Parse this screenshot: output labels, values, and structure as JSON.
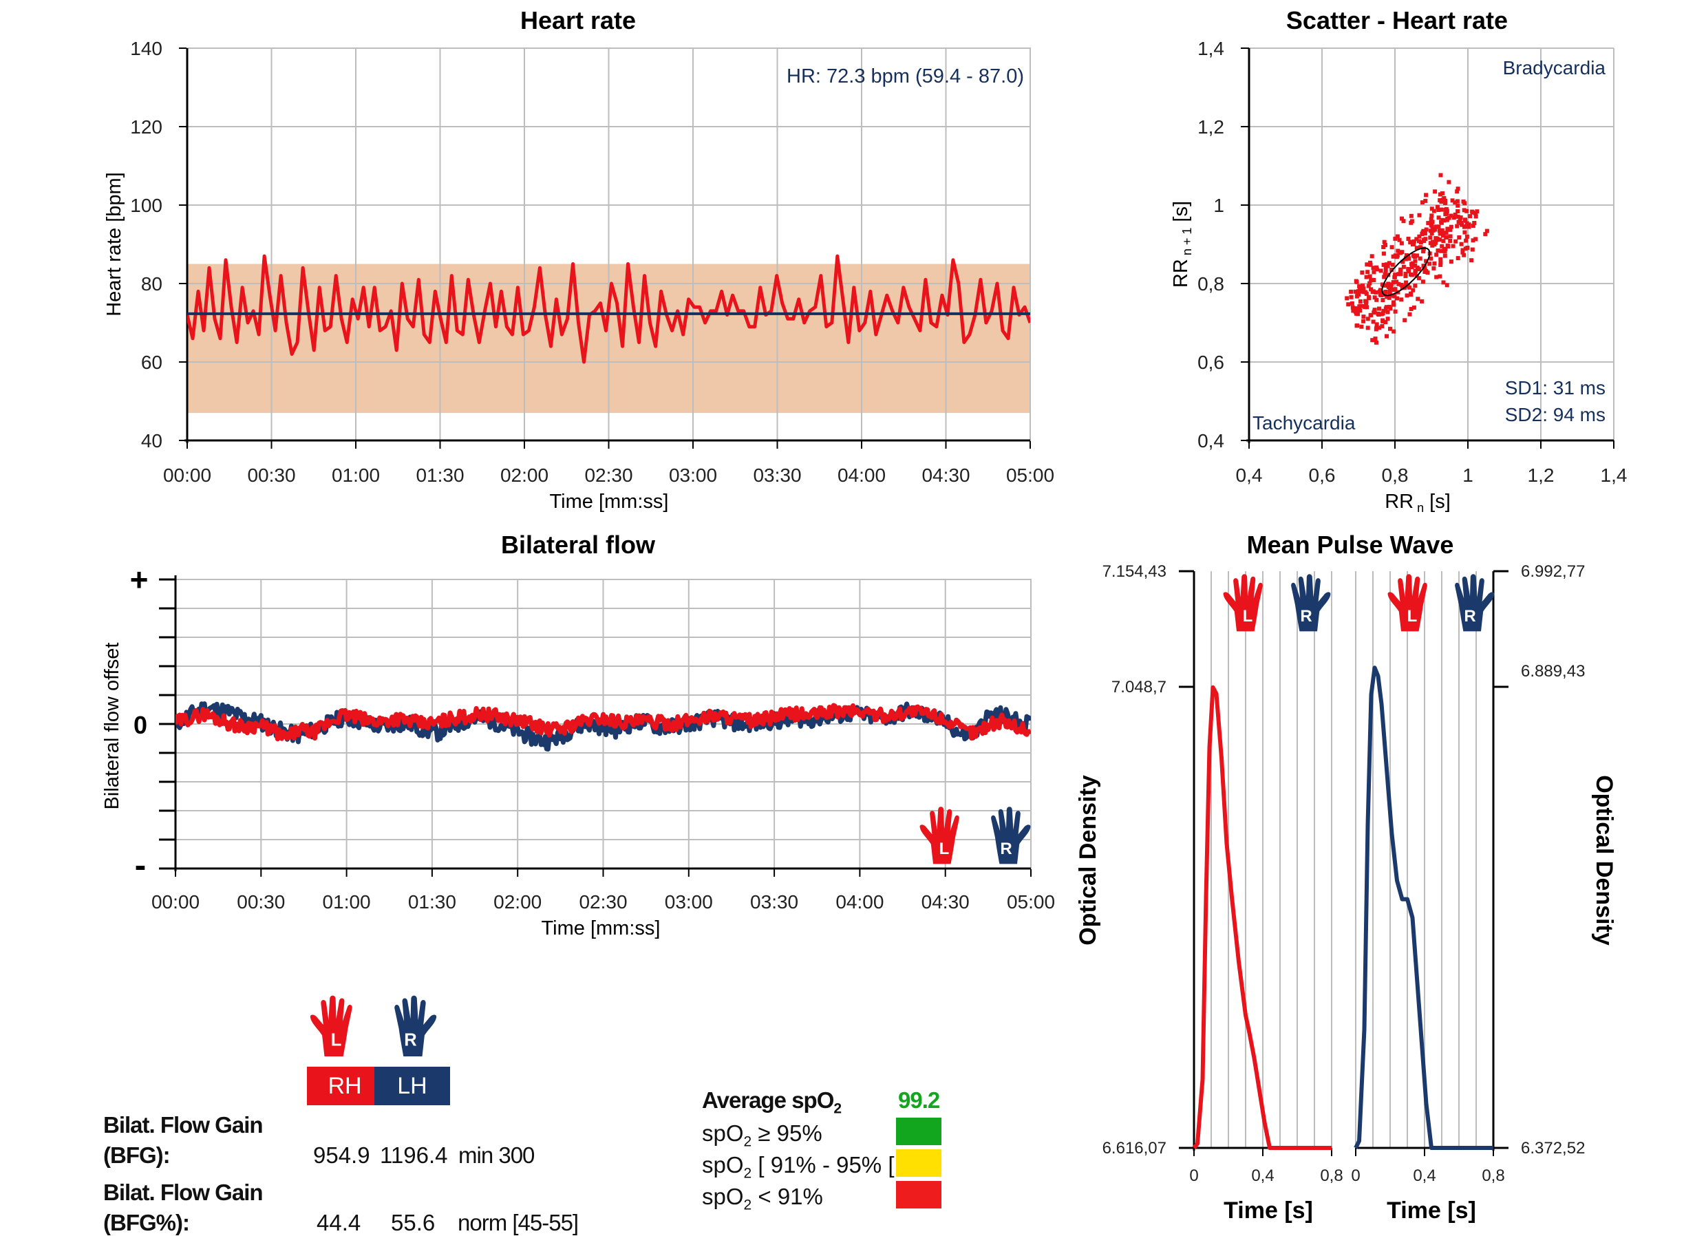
{
  "colors": {
    "right_hand": "#e8131b",
    "left_hand": "#1b3a6b",
    "band": "#efc7a9",
    "mean_line": "#15305c",
    "good": "#12a51e",
    "warn": "#ffe000",
    "bad": "#ee1c1c"
  },
  "hands": {
    "left_letter": "L",
    "right_letter": "R"
  },
  "hr_chart": {
    "title": "Heart rate",
    "ylabel": "Heart rate [bpm]",
    "xlabel": "Time [mm:ss]",
    "yticks": [
      "140",
      "120",
      "100",
      "80",
      "60",
      "40"
    ],
    "xticks": [
      "00:00",
      "00:30",
      "01:00",
      "01:30",
      "02:00",
      "02:30",
      "03:00",
      "03:30",
      "04:00",
      "04:30",
      "05:00"
    ],
    "annotation": "HR: 72.3 bpm (59.4 - 87.0)"
  },
  "scatter_chart": {
    "title": "Scatter - Heart rate",
    "xlabel": "RR n [s]",
    "ylabel": "RR n + 1 [s]",
    "yticks": [
      "1,4",
      "1,2",
      "1",
      "0,8",
      "0,6",
      "0,4"
    ],
    "xticks": [
      "0,4",
      "0,6",
      "0,8",
      "1",
      "1,2",
      "1,4"
    ],
    "label_top": "Bradycardia",
    "label_bottom": "Tachycardia",
    "sd1": "SD1: 31 ms",
    "sd2": "SD2: 94 ms"
  },
  "flow_chart": {
    "title": "Bilateral flow",
    "ylabel": "Bilateral flow offset",
    "xlabel": "Time [mm:ss]",
    "plus": "+",
    "zero": "0",
    "minus": "-",
    "xticks": [
      "00:00",
      "00:30",
      "01:00",
      "01:30",
      "02:00",
      "02:30",
      "03:00",
      "03:30",
      "04:00",
      "04:30",
      "05:00"
    ]
  },
  "pulse_chart": {
    "title": "Mean Pulse Wave",
    "left_ticks": [
      "7.154,43",
      "7.048,7",
      "6.616,07"
    ],
    "right_ticks": [
      "6.992,77",
      "6.889,43",
      "6.372,52"
    ],
    "ylabel": "Optical Density",
    "xticks": [
      "0",
      "0,4",
      "0,8"
    ],
    "xlabel": "Time [s]"
  },
  "legend": {
    "rh": "RH",
    "lh": "LH"
  },
  "stats": {
    "bfg_label_1": "Bilat. Flow Gain",
    "bfg_label_2": "(BFG):",
    "bfg_rh": "954.9",
    "bfg_lh": "1196.4",
    "bfg_norm": "min 300",
    "bfgp_label_1": "Bilat. Flow Gain",
    "bfgp_label_2": "(BFG%):",
    "bfgp_rh": "44.4",
    "bfgp_lh": "55.6",
    "bfgp_norm": "norm [45-55]"
  },
  "spo2": {
    "avg_label": "Average spO",
    "avg_sub": "2",
    "avg_value": "99.2",
    "row1_pre": "spO",
    "row1_sub": "2",
    "row1_post": " ≥ 95%",
    "row2_pre": "spO",
    "row2_sub": "2",
    "row2_post": " [ 91% - 95% [",
    "row3_pre": "spO",
    "row3_sub": "2",
    "row3_post": " < 91%"
  },
  "chart_data": [
    {
      "type": "line",
      "title": "Heart rate",
      "xlabel": "Time [mm:ss]",
      "ylabel": "Heart rate [bpm]",
      "xlim": [
        0,
        300
      ],
      "ylim": [
        40,
        140
      ],
      "band": [
        47,
        85
      ],
      "mean": 72.3,
      "series": [
        {
          "values": [
            72,
            66,
            78,
            68,
            84,
            71,
            66,
            86,
            74,
            65,
            79,
            70,
            73,
            67,
            87,
            77,
            68,
            82,
            70,
            62,
            65,
            84,
            73,
            63,
            79,
            68,
            69,
            82,
            71,
            65,
            76,
            71,
            79,
            69,
            79,
            68,
            69,
            73,
            63,
            80,
            71,
            69,
            81,
            67,
            65,
            78,
            71,
            65,
            82,
            68,
            67,
            81,
            72,
            65,
            73,
            80,
            69,
            78,
            69,
            67,
            79,
            67,
            68,
            74,
            84,
            72,
            64,
            76,
            67,
            71,
            85,
            70,
            60,
            72,
            73,
            75,
            68,
            80,
            75,
            64,
            85,
            74,
            65,
            82,
            70,
            64,
            78,
            72,
            68,
            73,
            67,
            76,
            74,
            74,
            70,
            73,
            73,
            78,
            72,
            77,
            73,
            73,
            69,
            69,
            79,
            72,
            73,
            82,
            75,
            71,
            71,
            76,
            70,
            73,
            74,
            82,
            69,
            70,
            87,
            76,
            65,
            79,
            68,
            70,
            78,
            67,
            72,
            77,
            73,
            70,
            79,
            74,
            71,
            68,
            81,
            70,
            69,
            77,
            72,
            86,
            80,
            65,
            67,
            72,
            81,
            70,
            73,
            80,
            68,
            66,
            79,
            72,
            74,
            70
          ]
        }
      ]
    },
    {
      "type": "scatter",
      "title": "Scatter - Heart rate",
      "xlabel": "RR n [s]",
      "ylabel": "RR n + 1 [s]",
      "xlim": [
        0.4,
        1.4
      ],
      "ylim": [
        0.4,
        1.4
      ],
      "center": [
        0.83,
        0.83
      ],
      "x_range": [
        0.7,
        1.0
      ],
      "sd1_ms": 31,
      "sd2_ms": 94
    },
    {
      "type": "line",
      "title": "Bilateral flow",
      "xlabel": "Time [mm:ss]",
      "ylabel": "Bilateral flow offset",
      "xlim": [
        0,
        300
      ],
      "ylim": [
        -5,
        5
      ],
      "series": [
        {
          "name": "RH",
          "values": [
            0.05,
            0.2,
            0.35,
            0.2,
            0.0,
            -0.1,
            -0.05,
            -0.2,
            -0.5,
            -0.2,
            -0.3,
            0.0,
            0.3,
            0.25,
            0.1,
            0.1,
            0.2,
            0.1,
            0.0,
            0.05,
            0.2,
            0.25,
            0.35,
            0.3,
            0.2,
            0.1,
            0.0,
            -0.2,
            -0.15,
            0.0,
            0.15,
            0.2,
            0.1,
            0.05,
            0.1,
            0.05,
            0.0,
            0.1,
            0.2,
            0.3,
            0.25,
            0.15,
            0.1,
            0.2,
            0.3,
            0.35,
            0.3,
            0.4,
            0.45,
            0.45,
            0.4,
            0.3,
            0.3,
            0.45,
            0.4,
            0.3,
            0.1,
            -0.2,
            -0.3,
            0.0,
            0.1,
            -0.1,
            -0.3
          ]
        },
        {
          "name": "LH",
          "values": [
            0.0,
            0.3,
            0.55,
            0.5,
            0.4,
            0.2,
            0.1,
            -0.1,
            -0.3,
            -0.4,
            -0.2,
            0.0,
            0.2,
            0.15,
            0.0,
            -0.1,
            0.0,
            0.0,
            -0.2,
            -0.3,
            -0.1,
            0.1,
            0.2,
            0.1,
            -0.1,
            -0.3,
            -0.5,
            -0.6,
            -0.4,
            -0.1,
            0.0,
            -0.1,
            -0.2,
            0.0,
            0.1,
            -0.1,
            -0.1,
            0.0,
            0.1,
            0.2,
            0.1,
            0.0,
            0.0,
            0.1,
            0.1,
            0.2,
            0.15,
            0.25,
            0.3,
            0.35,
            0.3,
            0.2,
            0.25,
            0.45,
            0.35,
            0.2,
            0.0,
            -0.4,
            -0.3,
            0.3,
            0.3,
            0.1,
            0.0
          ]
        }
      ]
    },
    {
      "type": "line",
      "title": "Mean Pulse Wave",
      "xlabel": "Time [s]",
      "ylabel": "Optical Density",
      "xlim": [
        0,
        0.8
      ],
      "series": [
        {
          "name": "L",
          "x": [
            0,
            0.02,
            0.05,
            0.07,
            0.09,
            0.11,
            0.13,
            0.16,
            0.19,
            0.22,
            0.26,
            0.3,
            0.32,
            0.35,
            0.38,
            0.41,
            0.44,
            0.8
          ],
          "y": [
            6616.07,
            6620,
            6680,
            6850,
            6990,
            7046,
            7040,
            6980,
            6900,
            6850,
            6790,
            6740,
            6725,
            6700,
            6670,
            6640,
            6616.07,
            6616.07
          ]
        },
        {
          "name": "R",
          "x": [
            0,
            0.02,
            0.05,
            0.07,
            0.09,
            0.11,
            0.13,
            0.15,
            0.18,
            0.21,
            0.24,
            0.27,
            0.3,
            0.33,
            0.37,
            0.41,
            0.44,
            0.8
          ],
          "y": [
            6372.52,
            6380,
            6500,
            6720,
            6860,
            6889,
            6880,
            6850,
            6780,
            6710,
            6660,
            6640,
            6640,
            6620,
            6520,
            6420,
            6372.52,
            6372.52
          ]
        }
      ]
    }
  ]
}
